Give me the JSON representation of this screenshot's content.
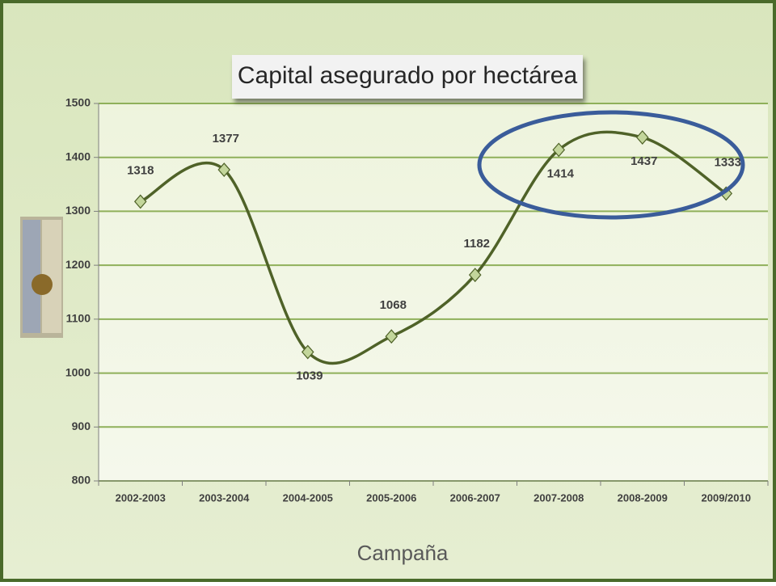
{
  "chart_data": {
    "type": "line",
    "title": "Capital asegurado por hectárea",
    "x_label": "Campaña",
    "categories": [
      "2002-2003",
      "2003-2004",
      "2004-2005",
      "2005-2006",
      "2006-2007",
      "2007-2008",
      "2008-2009",
      "2009/2010"
    ],
    "values": [
      1318,
      1377,
      1039,
      1068,
      1182,
      1414,
      1437,
      1333
    ],
    "color": "#4f6228",
    "marker_color": "#c3d69b",
    "ylim": [
      800,
      1500
    ],
    "yticks": [
      800,
      900,
      1000,
      1100,
      1200,
      1300,
      1400,
      1500
    ],
    "grid": true
  }
}
